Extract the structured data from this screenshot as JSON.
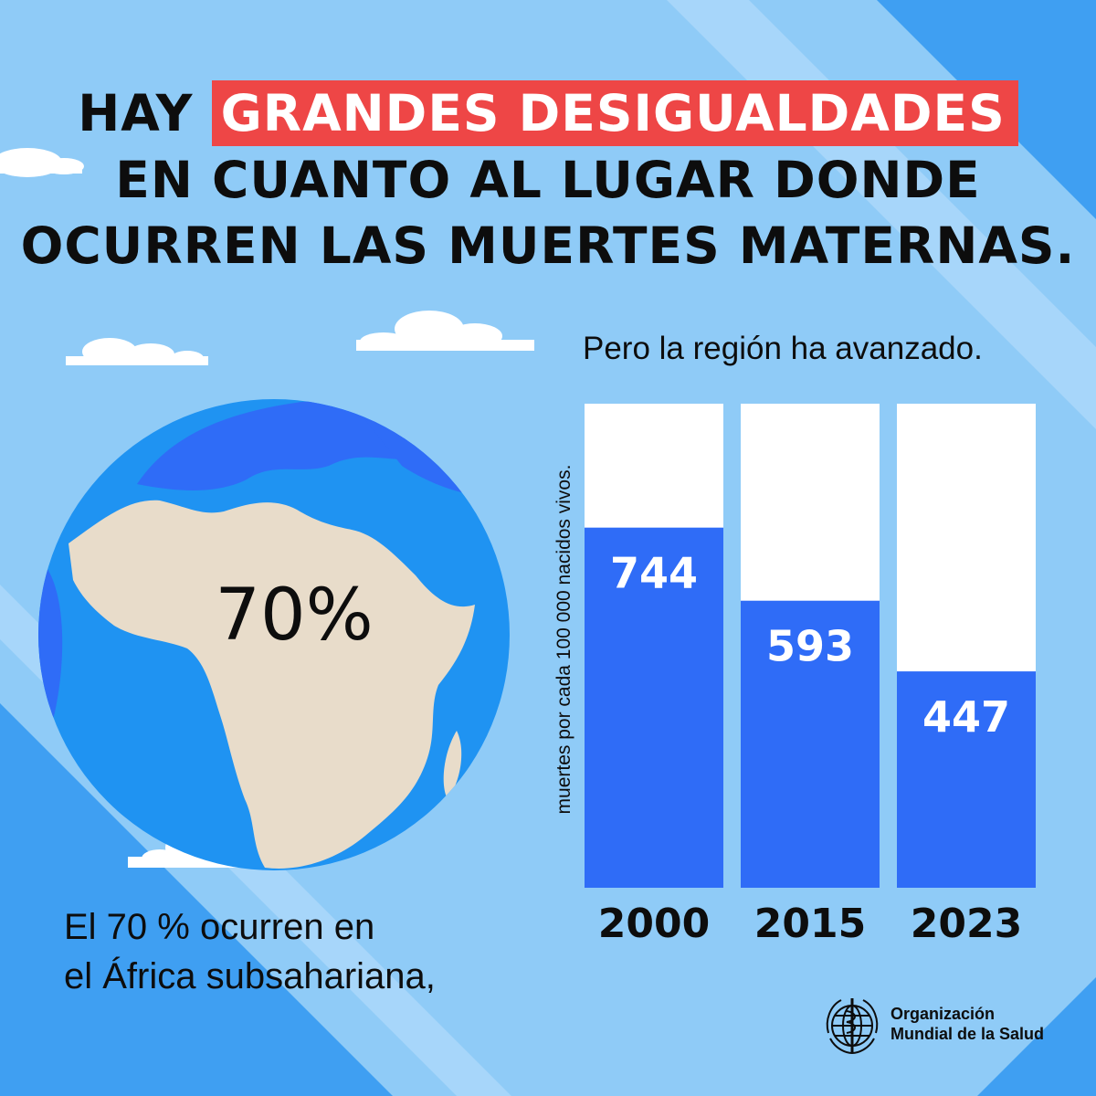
{
  "headline": {
    "lead": "HAY",
    "highlight": "GRANDES DESIGUALDADES",
    "line2": "EN CUANTO AL LUGAR DONDE",
    "line3": "OCURREN LAS MUERTES MATERNAS."
  },
  "globe": {
    "label": "70%"
  },
  "caption": {
    "line1": "El 70 % ocurren en",
    "line2": "el África subsahariana,"
  },
  "chart_data": {
    "type": "bar",
    "title": "Pero la región ha avanzado.",
    "ylabel": "muertes por cada 100 000 nacidos vivos.",
    "categories": [
      "2000",
      "2015",
      "2023"
    ],
    "values": [
      744,
      593,
      447
    ],
    "ylim": [
      0,
      1000
    ]
  },
  "org": {
    "name_line1": "Organización",
    "name_line2": "Mundial de la Salud"
  },
  "colors": {
    "background": "#8fcbf7",
    "stripe": "#4aa8f3",
    "bar_fill": "#2f6cf7",
    "bar_track": "#ffffff",
    "highlight": "#ee4646",
    "ocean": "#1f93f2",
    "land": "#e8dcca"
  }
}
